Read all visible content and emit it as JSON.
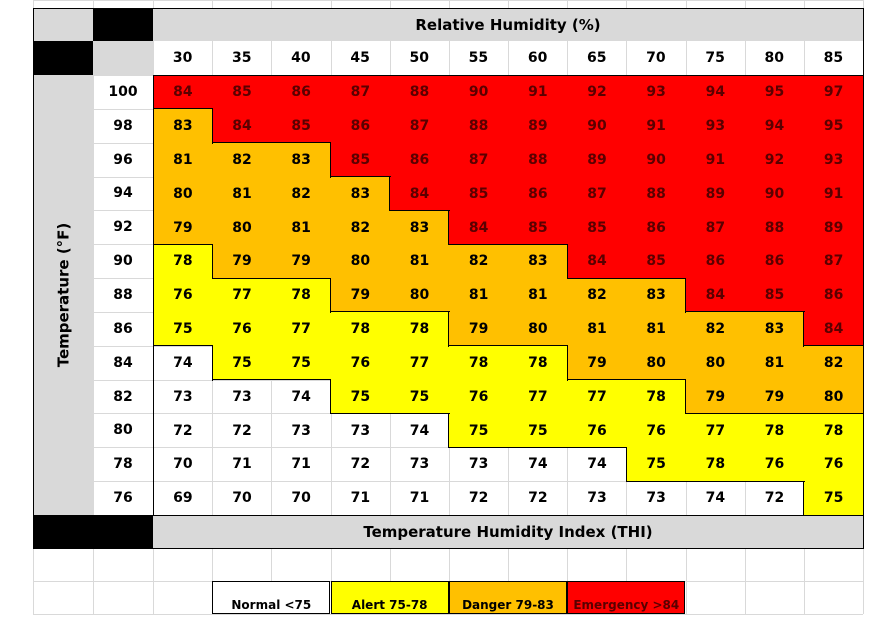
{
  "chart_data": {
    "type": "heatmap",
    "title": "Temperature Humidity Index (THI)",
    "xlabel": "Relative Humidity (%)",
    "ylabel": "Temperature (°F)",
    "x": [
      30,
      35,
      40,
      45,
      50,
      55,
      60,
      65,
      70,
      75,
      80,
      85
    ],
    "y": [
      100,
      98,
      96,
      94,
      92,
      90,
      88,
      86,
      84,
      82,
      80,
      78,
      76
    ],
    "values": [
      [
        84,
        85,
        86,
        87,
        88,
        90,
        91,
        92,
        93,
        94,
        95,
        97
      ],
      [
        83,
        84,
        85,
        86,
        87,
        88,
        89,
        90,
        91,
        93,
        94,
        95
      ],
      [
        81,
        82,
        83,
        85,
        86,
        87,
        88,
        89,
        90,
        91,
        92,
        93
      ],
      [
        80,
        81,
        82,
        83,
        84,
        85,
        86,
        87,
        88,
        89,
        90,
        91
      ],
      [
        79,
        80,
        81,
        82,
        83,
        84,
        85,
        85,
        86,
        87,
        88,
        89
      ],
      [
        78,
        79,
        79,
        80,
        81,
        82,
        83,
        84,
        85,
        86,
        86,
        87
      ],
      [
        76,
        77,
        78,
        79,
        80,
        81,
        81,
        82,
        83,
        84,
        85,
        86
      ],
      [
        75,
        76,
        77,
        78,
        78,
        79,
        80,
        81,
        81,
        82,
        83,
        84
      ],
      [
        74,
        75,
        75,
        76,
        77,
        78,
        78,
        79,
        80,
        80,
        81,
        82
      ],
      [
        73,
        73,
        74,
        75,
        75,
        76,
        77,
        77,
        78,
        79,
        79,
        80
      ],
      [
        72,
        72,
        73,
        73,
        74,
        75,
        75,
        76,
        76,
        77,
        78,
        78
      ],
      [
        70,
        71,
        71,
        72,
        73,
        73,
        74,
        74,
        75,
        78,
        76,
        76
      ],
      [
        69,
        70,
        70,
        71,
        71,
        72,
        72,
        73,
        73,
        74,
        72,
        75
      ]
    ],
    "legend": [
      {
        "label": "Normal <75",
        "color": "#ffffff",
        "max": 74
      },
      {
        "label": "Alert 75-78",
        "color": "#ffff00",
        "max": 78
      },
      {
        "label": "Danger 79-83",
        "color": "#ffc000",
        "max": 83
      },
      {
        "label": "Emergency >84",
        "color": "#ff0000",
        "max": 999
      }
    ],
    "emergency_text_color": "#5a0000"
  }
}
